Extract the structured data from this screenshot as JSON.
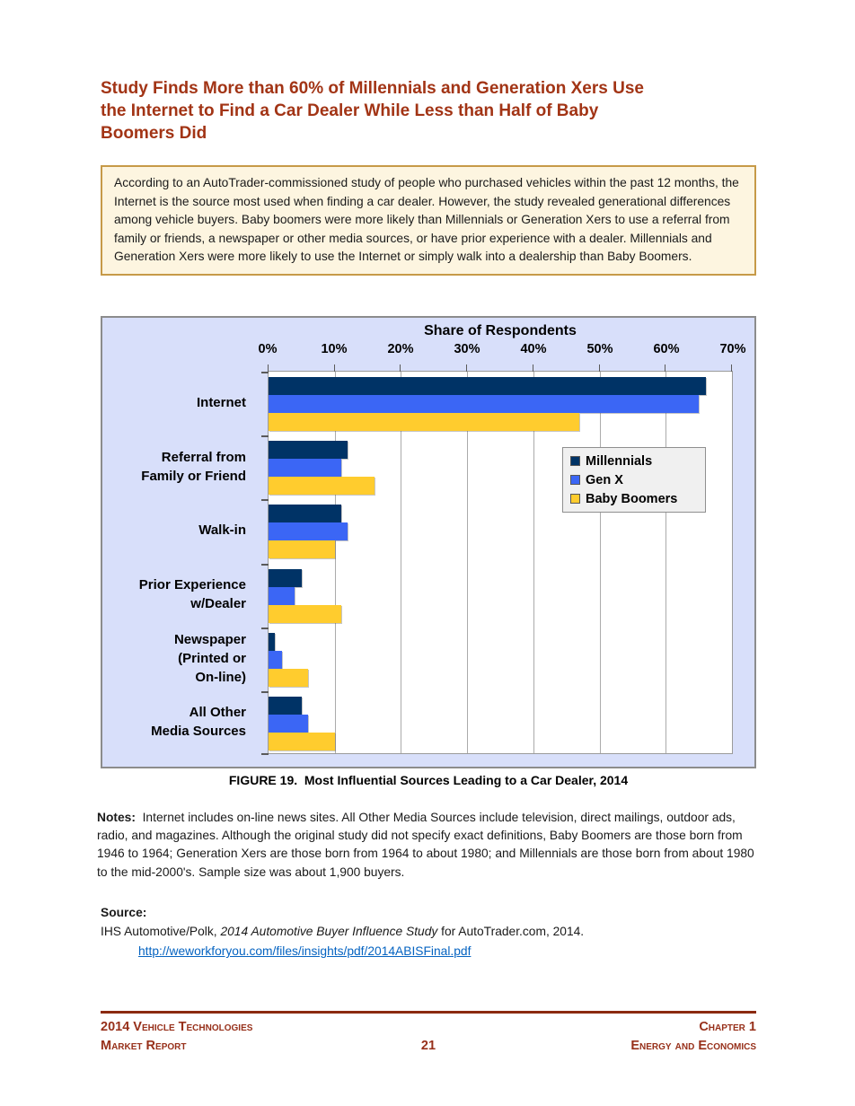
{
  "page": {
    "title": "Study Finds More than 60% of Millennials and Generation Xers Use\nthe Internet to Find a Car Dealer While Less than Half of Baby\nBoomers Did",
    "callout_text": "According to an AutoTrader-commissioned study of people who purchased vehicles within the past 12 months, the Internet is the source most used when finding a car dealer. However, the study revealed generational differences among vehicle buyers. Baby boomers were more likely than Millennials or Generation Xers to use a referral from family or friends, a newspaper or other media sources, or have prior experience with a dealer. Millennials and Generation Xers were more likely to use the Internet or simply walk into a dealership than Baby Boomers.",
    "figure_caption": "FIGURE 19.  Most Influential Sources Leading to a Car Dealer, 2014",
    "notes_label": "Notes:",
    "notes_body": "  Internet includes on-line news sites. All Other Media Sources include television, direct mailings, outdoor ads, radio, and magazines. Although the original study did not specify exact definitions, Baby Boomers are those born from 1946 to 1964; Generation Xers are those born from 1964 to about 1980; and Millennials are those born from about 1980 to the mid-2000's. Sample size was about 1,900 buyers.",
    "source_label": "Source:",
    "source_citation_pre": "IHS Automotive/Polk, ",
    "source_citation_italic": "2014 Automotive Buyer Influence Study",
    "source_citation_post": " for AutoTrader.com, 2014.",
    "source_link": "http://weworkforyou.com/files/insights/pdf/2014ABISFinal.pdf"
  },
  "footer": {
    "left": "2014 Vehicle Technologies\nMarket Report",
    "page_number": "21",
    "right": "Chapter 1\nEnergy and Economics"
  },
  "chart_data": {
    "type": "bar",
    "orientation": "horizontal",
    "title": "Share of Respondents",
    "categories": [
      "Internet",
      "Referral from Family or Friend",
      "Walk-in",
      "Prior Experience w/Dealer",
      "Newspaper (Printed or On-line)",
      "All Other Media Sources"
    ],
    "category_labels_multiline": [
      "Internet",
      "Referral from\nFamily or Friend",
      "Walk-in",
      "Prior Experience\nw/Dealer",
      "Newspaper\n(Printed or\nOn-line)",
      "All Other\nMedia Sources"
    ],
    "series": [
      {
        "name": "Millennials",
        "color": "#003366",
        "values": [
          66,
          12,
          11,
          5,
          1,
          5
        ]
      },
      {
        "name": "Gen X",
        "color": "#3B66F5",
        "values": [
          65,
          11,
          12,
          4,
          2,
          6
        ]
      },
      {
        "name": "Baby Boomers",
        "color": "#FFCC2E",
        "values": [
          47,
          16,
          10,
          11,
          6,
          10
        ]
      }
    ],
    "x_ticks": [
      "0%",
      "10%",
      "20%",
      "30%",
      "40%",
      "50%",
      "60%",
      "70%"
    ],
    "xlim": [
      0,
      70
    ],
    "grid": true,
    "legend_position": "center-right",
    "axis_title_position": "top"
  },
  "colors": {
    "heading_red": "#A23415",
    "footer_red": "#97301A",
    "rule_red": "#8B2A10",
    "text": "#1A1A1A",
    "callout_bg": "#FDF5E0",
    "callout_border": "#C69A48",
    "chart_bg": "#D8DFFA",
    "chart_border": "#8C8C8C",
    "plot_bg": "#FFFFFF",
    "grid": "#ABABAB",
    "legend_bg": "#F0F0F0",
    "legend_border": "#8F8F8F",
    "link_blue": "#0563C1"
  }
}
